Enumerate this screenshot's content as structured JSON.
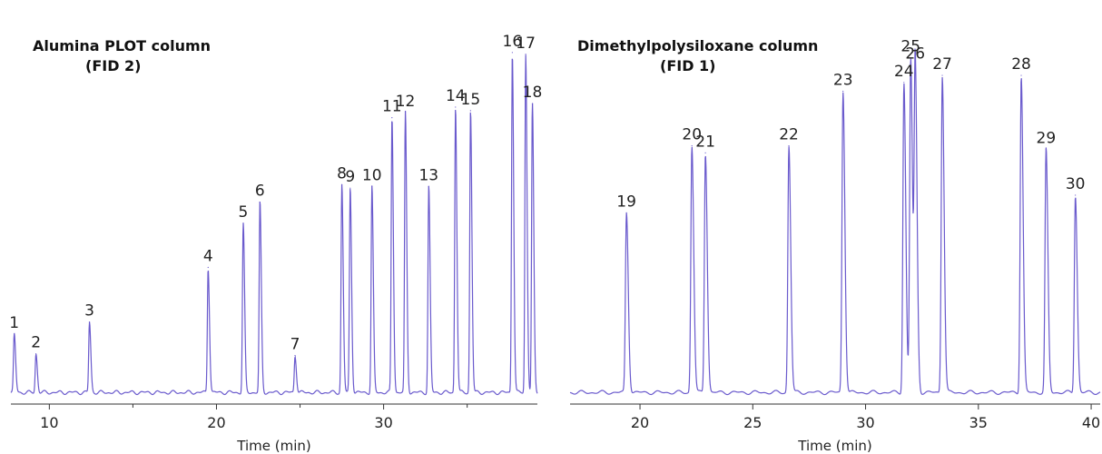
{
  "colors": {
    "trace": "#6a5acd",
    "axis": "#333333",
    "text": "#222222"
  },
  "chart_data": [
    {
      "type": "line",
      "title": "Alumina PLOT column",
      "subtitle": "(FID 2)",
      "xlabel": "Time (min)",
      "ylabel": "",
      "xlim": [
        7.7,
        39.2
      ],
      "ylim": [
        0,
        100
      ],
      "x_ticks": [
        10,
        20,
        30
      ],
      "x_ticks_minor": [
        15,
        25,
        35
      ],
      "grid": false,
      "baseline": 2,
      "peaks": [
        {
          "label": "1",
          "x": 7.9,
          "y": 18.5
        },
        {
          "label": "2",
          "x": 9.2,
          "y": 13.0
        },
        {
          "label": "3",
          "x": 12.4,
          "y": 22.0
        },
        {
          "label": "4",
          "x": 19.5,
          "y": 37.5
        },
        {
          "label": "5",
          "x": 21.6,
          "y": 50.0
        },
        {
          "label": "6",
          "x": 22.6,
          "y": 56.0
        },
        {
          "label": "7",
          "x": 24.7,
          "y": 12.5
        },
        {
          "label": "8",
          "x": 27.5,
          "y": 61.0
        },
        {
          "label": "9",
          "x": 28.0,
          "y": 60.0
        },
        {
          "label": "10",
          "x": 29.3,
          "y": 60.5
        },
        {
          "label": "11",
          "x": 30.5,
          "y": 80.0
        },
        {
          "label": "12",
          "x": 31.3,
          "y": 81.5
        },
        {
          "label": "13",
          "x": 32.7,
          "y": 60.5
        },
        {
          "label": "14",
          "x": 34.3,
          "y": 83.0
        },
        {
          "label": "15",
          "x": 35.2,
          "y": 82.0
        },
        {
          "label": "16",
          "x": 37.7,
          "y": 98.5
        },
        {
          "label": "17",
          "x": 38.5,
          "y": 98.0
        },
        {
          "label": "18",
          "x": 38.9,
          "y": 84.0
        }
      ]
    },
    {
      "type": "line",
      "title": "Dimethylpolysiloxane column",
      "subtitle": "(FID 1)",
      "xlabel": "Time (min)",
      "ylabel": "",
      "xlim": [
        16.9,
        40.4
      ],
      "ylim": [
        0,
        100
      ],
      "x_ticks": [
        20,
        25,
        30,
        35,
        40
      ],
      "x_ticks_minor": [],
      "grid": false,
      "baseline": 2,
      "peaks": [
        {
          "label": "19",
          "x": 19.4,
          "y": 53.0
        },
        {
          "label": "20",
          "x": 22.3,
          "y": 72.0
        },
        {
          "label": "21",
          "x": 22.9,
          "y": 70.0
        },
        {
          "label": "22",
          "x": 26.6,
          "y": 72.0
        },
        {
          "label": "23",
          "x": 29.0,
          "y": 87.5
        },
        {
          "label": "24",
          "x": 31.7,
          "y": 90.0
        },
        {
          "label": "25",
          "x": 32.0,
          "y": 97.0
        },
        {
          "label": "26",
          "x": 32.2,
          "y": 95.0
        },
        {
          "label": "27",
          "x": 33.4,
          "y": 92.0
        },
        {
          "label": "28",
          "x": 36.9,
          "y": 92.0
        },
        {
          "label": "29",
          "x": 38.0,
          "y": 71.0
        },
        {
          "label": "30",
          "x": 39.3,
          "y": 58.0
        }
      ]
    }
  ]
}
